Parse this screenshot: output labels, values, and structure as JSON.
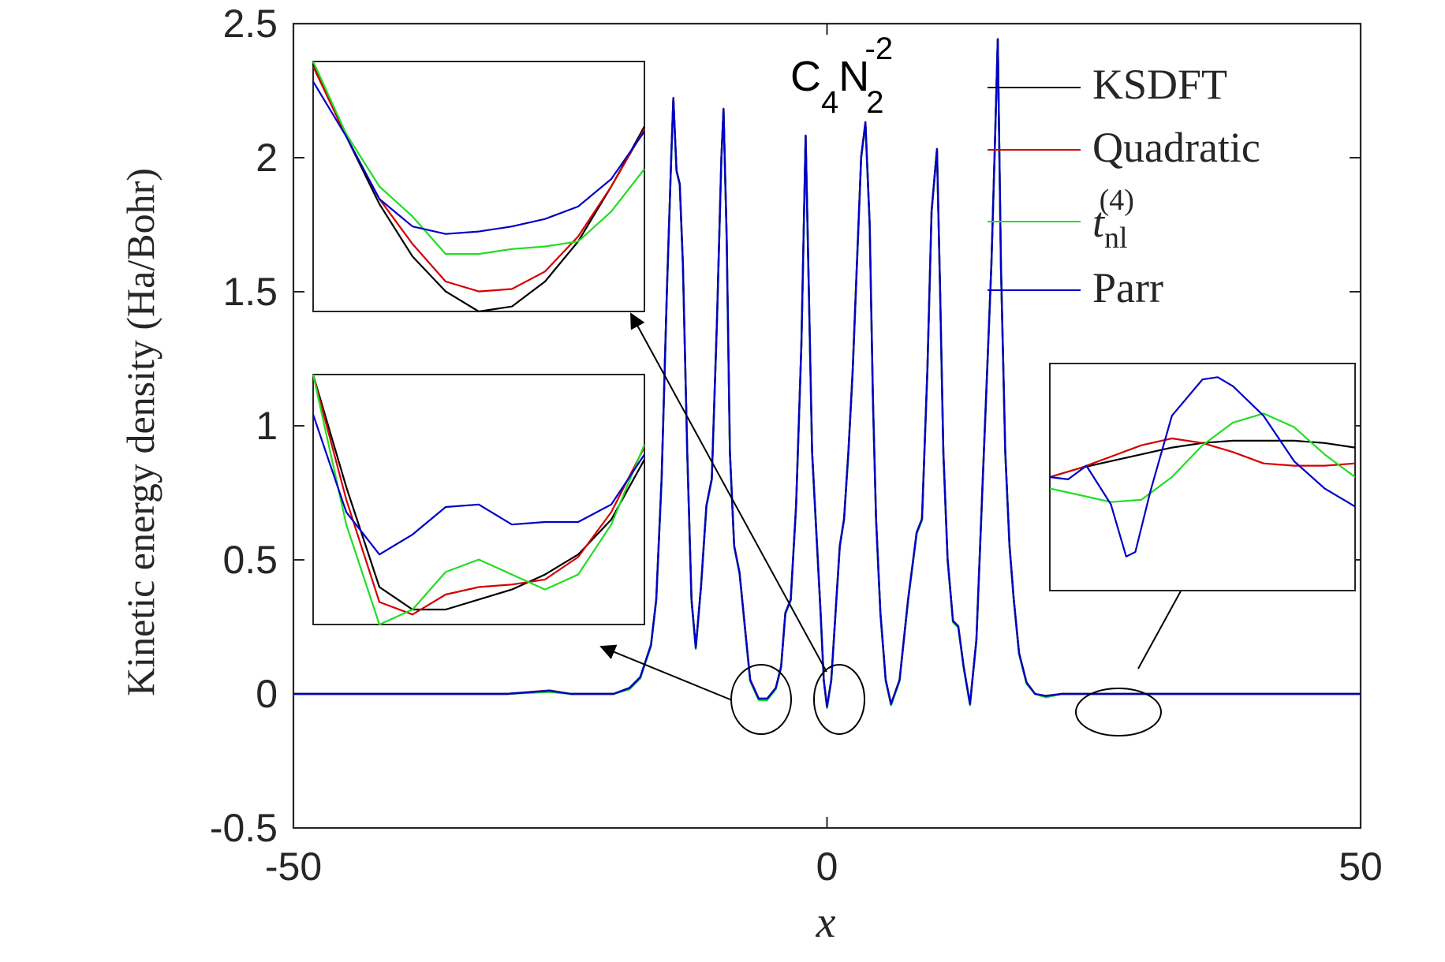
{
  "chart_data": {
    "type": "line",
    "annotation": {
      "C": "C",
      "c_sub": "4",
      "N": "N",
      "n_sub": "2",
      "n_sup": "-2"
    },
    "xlabel": "x",
    "ylabel": "Kinetic energy density (Ha/Bohr)",
    "xlim": [
      -50,
      50
    ],
    "ylim": [
      -0.5,
      2.5
    ],
    "x_ticks": [
      -50,
      0,
      50
    ],
    "x_tick_labels": [
      "-50",
      "0",
      "50"
    ],
    "y_ticks": [
      -0.5,
      0,
      0.5,
      1,
      1.5,
      2,
      2.5
    ],
    "y_tick_labels": [
      "-0.5",
      "0",
      "0.5",
      "1",
      "1.5",
      "2",
      "2.5"
    ],
    "grid": false,
    "legend_position": "top-right",
    "legend": {
      "ksdft": "KSDFT",
      "quadratic": "Quadratic",
      "tnl_base": "t",
      "tnl_sub": "nl",
      "tnl_sup": "(4)",
      "parr": "Parr"
    },
    "colors": {
      "KSDFT": "#000000",
      "Quadratic": "#d40000",
      "tnl": "#22dd22",
      "Parr": "#0000c8"
    },
    "peaks": [
      {
        "x": -14.4,
        "y": 2.22
      },
      {
        "x": -9.7,
        "y": 2.18
      },
      {
        "x": -2.0,
        "y": 2.08
      },
      {
        "x": 4.0,
        "y": 2.13
      },
      {
        "x": 10.3,
        "y": 2.03
      },
      {
        "x": 16.0,
        "y": 2.44
      }
    ],
    "main_series": [
      {
        "name": "KSDFT",
        "x": [
          -50,
          -30,
          -26,
          -24,
          -20,
          -18.5,
          -17.5,
          -16.5,
          -16,
          -15.5,
          -15,
          -14.6,
          -14.4,
          -14.1,
          -13.8,
          -13.5,
          -13.1,
          -12.7,
          -12.3,
          -11.8,
          -11.3,
          -10.8,
          -10.3,
          -9.9,
          -9.7,
          -9.4,
          -9.1,
          -8.7,
          -8.2,
          -7.7,
          -7.2,
          -6.4,
          -5.6,
          -4.8,
          -4.3,
          -3.9,
          -3.4,
          -2.9,
          -2.4,
          -2.0,
          -1.7,
          -1.4,
          -1.0,
          -0.6,
          -0.3,
          0.0,
          0.4,
          0.8,
          1.2,
          1.6,
          2.0,
          2.4,
          2.8,
          3.2,
          3.6,
          4.0,
          4.3,
          4.6,
          5.0,
          5.5,
          6.0,
          6.8,
          7.6,
          8.4,
          8.9,
          9.4,
          9.8,
          10.3,
          10.6,
          10.9,
          11.3,
          11.8,
          12.3,
          12.8,
          13.4,
          14.0,
          14.6,
          15.0,
          15.4,
          15.7,
          16.0,
          16.3,
          16.7,
          17.1,
          17.5,
          18.0,
          18.7,
          19.5,
          20.5,
          22,
          30,
          50
        ],
        "y": [
          0,
          0,
          0.01,
          0,
          0,
          0.02,
          0.06,
          0.18,
          0.35,
          0.8,
          1.5,
          2.0,
          2.22,
          1.95,
          1.9,
          1.6,
          0.9,
          0.35,
          0.17,
          0.4,
          0.7,
          0.8,
          1.4,
          2.0,
          2.18,
          1.7,
          0.9,
          0.55,
          0.45,
          0.25,
          0.05,
          -0.02,
          -0.02,
          0.02,
          0.1,
          0.3,
          0.35,
          0.7,
          1.3,
          2.08,
          1.5,
          0.9,
          0.6,
          0.3,
          0.05,
          -0.05,
          0.05,
          0.3,
          0.55,
          0.65,
          0.9,
          1.2,
          1.6,
          2.0,
          2.13,
          1.75,
          1.1,
          0.65,
          0.3,
          0.05,
          -0.04,
          0.05,
          0.35,
          0.6,
          0.65,
          1.2,
          1.8,
          2.03,
          1.5,
          0.9,
          0.5,
          0.27,
          0.25,
          0.1,
          -0.04,
          0.2,
          0.8,
          1.2,
          1.6,
          2.0,
          2.44,
          1.6,
          0.9,
          0.55,
          0.35,
          0.15,
          0.04,
          0,
          -0.01,
          0,
          0,
          0
        ]
      }
    ],
    "insets": [
      {
        "location": "upper-left",
        "series": [
          {
            "name": "KSDFT",
            "x": [
              0,
              0.1,
              0.2,
              0.3,
              0.4,
              0.5,
              0.6,
              0.7,
              0.8,
              0.9,
              1.0
            ],
            "y": [
              0.99,
              0.7,
              0.43,
              0.22,
              0.08,
              0.0,
              0.02,
              0.12,
              0.28,
              0.5,
              0.74
            ]
          },
          {
            "name": "Quadratic",
            "x": [
              0,
              0.1,
              0.2,
              0.3,
              0.4,
              0.5,
              0.6,
              0.7,
              0.8,
              0.9,
              1.0
            ],
            "y": [
              0.98,
              0.7,
              0.45,
              0.27,
              0.12,
              0.08,
              0.09,
              0.16,
              0.3,
              0.5,
              0.73
            ]
          },
          {
            "name": "t_nl(4)",
            "x": [
              0,
              0.1,
              0.2,
              0.3,
              0.4,
              0.5,
              0.6,
              0.7,
              0.8,
              0.9,
              1.0
            ],
            "y": [
              1.0,
              0.71,
              0.5,
              0.38,
              0.23,
              0.23,
              0.25,
              0.26,
              0.28,
              0.4,
              0.57
            ]
          },
          {
            "name": "Parr",
            "x": [
              0,
              0.1,
              0.2,
              0.3,
              0.4,
              0.5,
              0.6,
              0.7,
              0.8,
              0.9,
              1.0
            ],
            "y": [
              0.92,
              0.7,
              0.45,
              0.34,
              0.31,
              0.32,
              0.34,
              0.37,
              0.42,
              0.53,
              0.72
            ]
          }
        ]
      },
      {
        "location": "middle-left",
        "series": [
          {
            "name": "KSDFT",
            "x": [
              0,
              0.1,
              0.2,
              0.3,
              0.4,
              0.5,
              0.6,
              0.7,
              0.8,
              0.9,
              1.0
            ],
            "y": [
              1.0,
              0.55,
              0.15,
              0.06,
              0.06,
              0.1,
              0.14,
              0.2,
              0.28,
              0.42,
              0.66
            ]
          },
          {
            "name": "Quadratic",
            "x": [
              0,
              0.1,
              0.2,
              0.3,
              0.4,
              0.5,
              0.6,
              0.7,
              0.8,
              0.9,
              1.0
            ],
            "y": [
              1.0,
              0.5,
              0.09,
              0.04,
              0.12,
              0.15,
              0.16,
              0.18,
              0.27,
              0.45,
              0.71
            ]
          },
          {
            "name": "t_nl(4)",
            "x": [
              0,
              0.1,
              0.2,
              0.3,
              0.4,
              0.5,
              0.6,
              0.7,
              0.8,
              0.9,
              1.0
            ],
            "y": [
              1.0,
              0.4,
              0.0,
              0.06,
              0.21,
              0.26,
              0.2,
              0.14,
              0.2,
              0.4,
              0.72
            ]
          },
          {
            "name": "Parr",
            "x": [
              0,
              0.1,
              0.2,
              0.3,
              0.4,
              0.5,
              0.6,
              0.7,
              0.8,
              0.9,
              1.0
            ],
            "y": [
              0.84,
              0.45,
              0.28,
              0.36,
              0.47,
              0.48,
              0.4,
              0.41,
              0.41,
              0.48,
              0.68
            ]
          }
        ]
      },
      {
        "location": "right",
        "series": [
          {
            "name": "KSDFT",
            "x": [
              0,
              0.1,
              0.2,
              0.3,
              0.4,
              0.5,
              0.6,
              0.7,
              0.8,
              0.9,
              1.0
            ],
            "y": [
              0.5,
              0.54,
              0.57,
              0.6,
              0.63,
              0.65,
              0.66,
              0.66,
              0.66,
              0.65,
              0.63
            ]
          },
          {
            "name": "Quadratic",
            "x": [
              0,
              0.1,
              0.2,
              0.3,
              0.4,
              0.5,
              0.6,
              0.7,
              0.8,
              0.9,
              1.0
            ],
            "y": [
              0.5,
              0.54,
              0.59,
              0.64,
              0.67,
              0.65,
              0.61,
              0.56,
              0.55,
              0.55,
              0.56
            ]
          },
          {
            "name": "t_nl(4)",
            "x": [
              0,
              0.1,
              0.2,
              0.3,
              0.4,
              0.5,
              0.6,
              0.7,
              0.8,
              0.9,
              1.0
            ],
            "y": [
              0.45,
              0.42,
              0.39,
              0.4,
              0.5,
              0.64,
              0.74,
              0.78,
              0.72,
              0.6,
              0.5
            ]
          },
          {
            "name": "Parr",
            "x": [
              0,
              0.06,
              0.12,
              0.2,
              0.25,
              0.28,
              0.33,
              0.4,
              0.5,
              0.55,
              0.6,
              0.7,
              0.8,
              0.9,
              1.0
            ],
            "y": [
              0.5,
              0.49,
              0.55,
              0.38,
              0.15,
              0.17,
              0.44,
              0.77,
              0.93,
              0.94,
              0.9,
              0.77,
              0.57,
              0.45,
              0.37
            ]
          }
        ]
      }
    ]
  }
}
